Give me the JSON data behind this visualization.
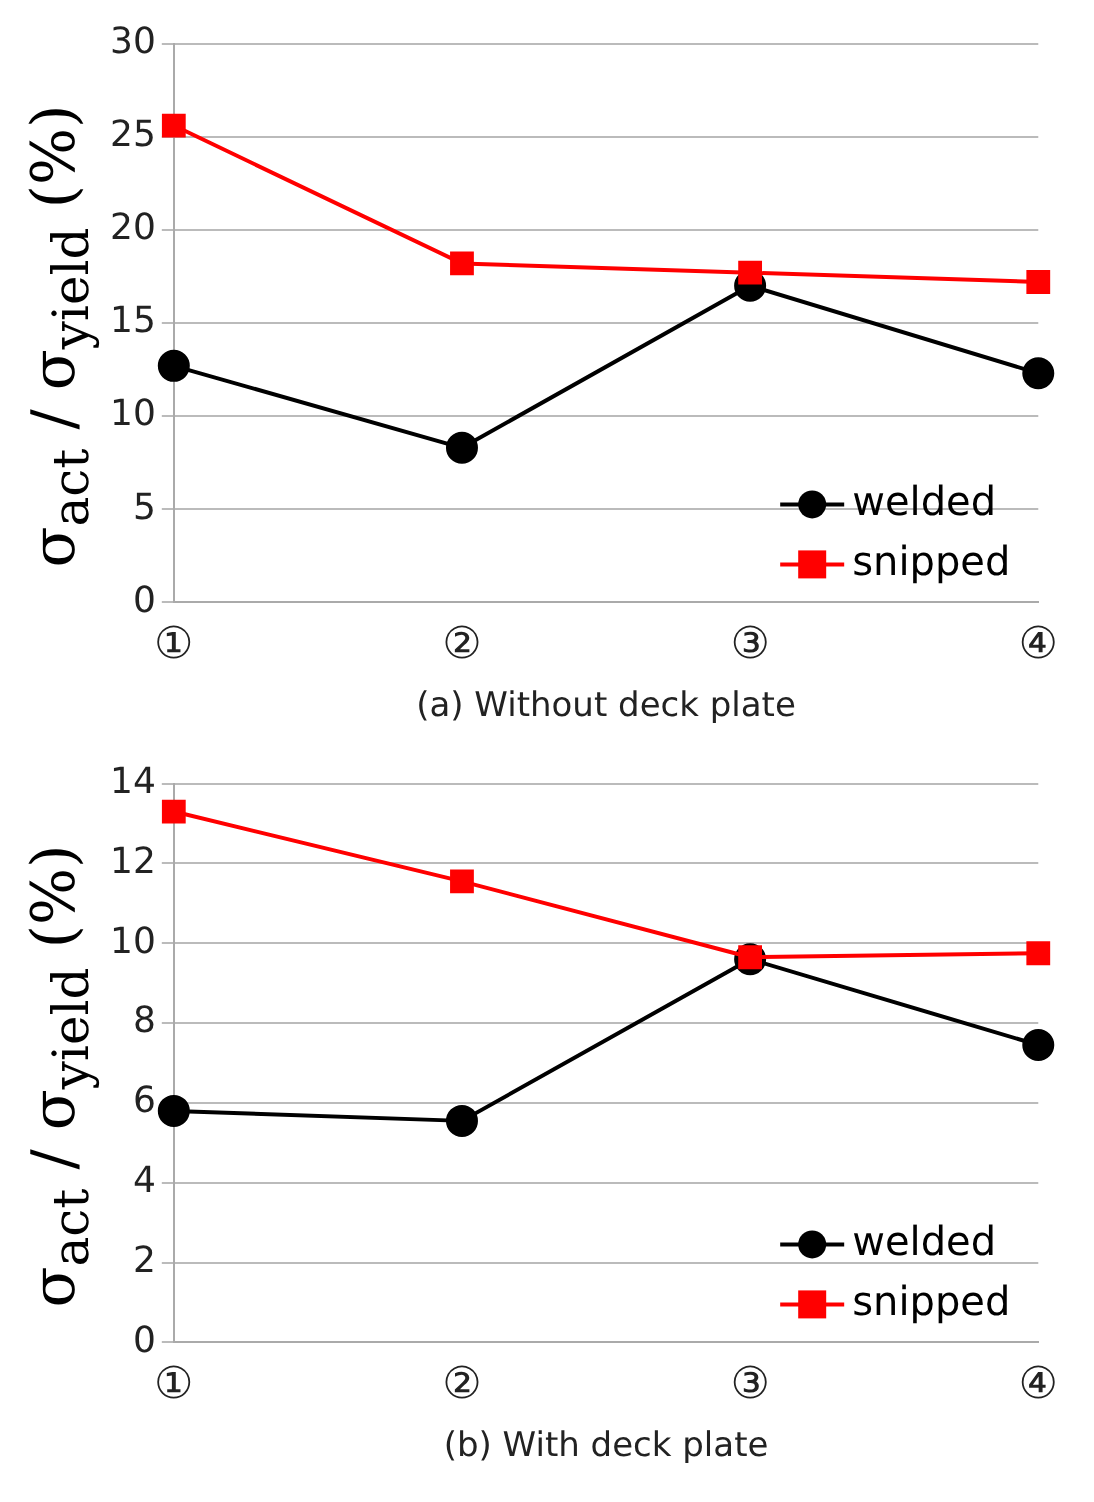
{
  "chart_data": [
    {
      "type": "line",
      "xlabel": "(a) Without deck plate",
      "ylabel": "σ$_{act}$ / σ$_{yield}$ (%)",
      "categories": [
        "①",
        "②",
        "③",
        "④"
      ],
      "ylim": [
        0,
        30
      ],
      "yticks": [
        0,
        5,
        10,
        15,
        20,
        25,
        30
      ],
      "grid": "y",
      "legend": "bottom right",
      "line_style": "solid",
      "series": [
        {
          "name": "welded",
          "color": "#000000",
          "marker": "circle",
          "values": [
            12.7,
            8.3,
            17.0,
            12.3
          ]
        },
        {
          "name": "snipped",
          "color": "#ff0000",
          "marker": "square",
          "values": [
            25.6,
            18.2,
            17.7,
            17.2
          ]
        }
      ]
    },
    {
      "type": "line",
      "xlabel": "(b) With deck plate",
      "ylabel": "σ$_{act}$ / σ$_{yield}$ (%)",
      "categories": [
        "①",
        "②",
        "③",
        "④"
      ],
      "ylim": [
        0,
        14
      ],
      "yticks": [
        0,
        2,
        4,
        6,
        8,
        10,
        12,
        14
      ],
      "grid": "y",
      "legend": "bottom right",
      "line_style": "solid",
      "series": [
        {
          "name": "welded",
          "color": "#000000",
          "marker": "circle",
          "values": [
            5.8,
            5.55,
            9.6,
            7.45
          ]
        },
        {
          "name": "snipped",
          "color": "#ff0000",
          "marker": "square",
          "values": [
            13.3,
            11.55,
            9.65,
            9.75
          ]
        }
      ]
    }
  ]
}
